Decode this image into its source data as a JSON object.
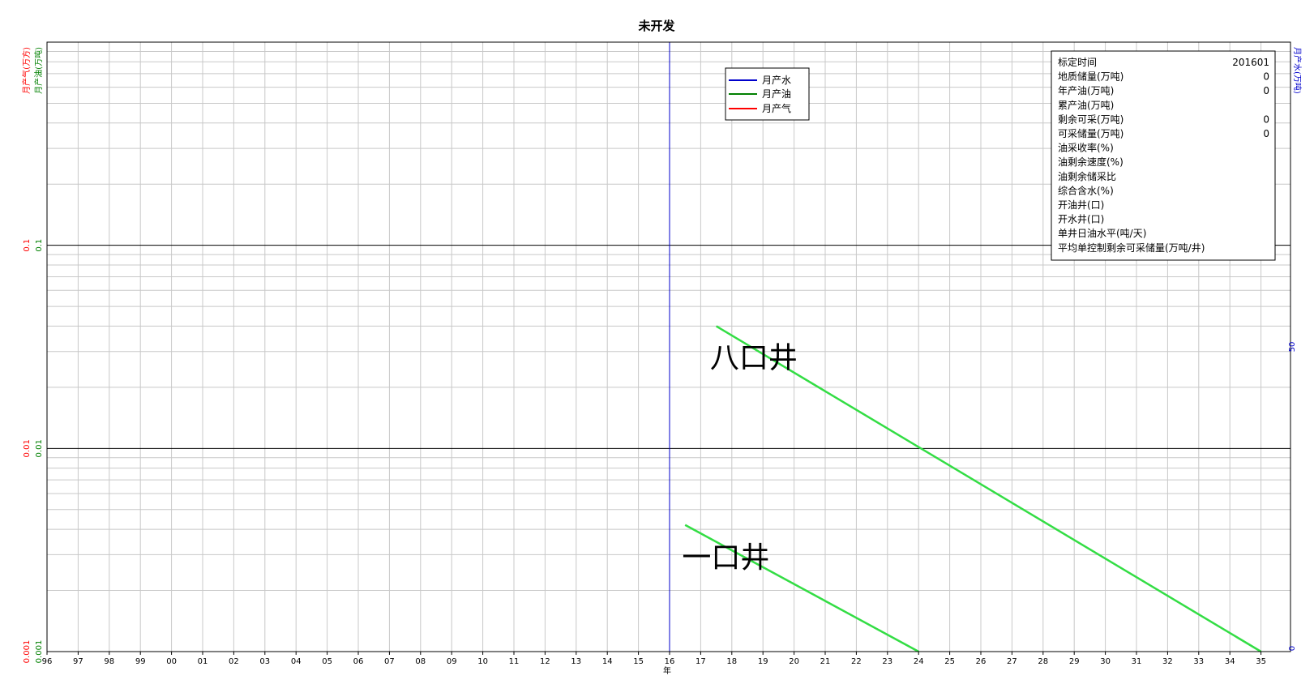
{
  "chart_data": {
    "type": "line",
    "title": "未开发",
    "xlabel": "年",
    "x_ticks": [
      "96",
      "97",
      "98",
      "99",
      "00",
      "01",
      "02",
      "03",
      "04",
      "05",
      "06",
      "07",
      "08",
      "09",
      "10",
      "11",
      "12",
      "13",
      "14",
      "15",
      "16",
      "17",
      "18",
      "19",
      "20",
      "21",
      "22",
      "23",
      "24",
      "25",
      "26",
      "27",
      "28",
      "29",
      "30",
      "31",
      "32",
      "33",
      "34",
      "35"
    ],
    "left_axes": [
      {
        "label": "月产气(万方)",
        "color": "#ff0000"
      },
      {
        "label": "月产油(万吨)",
        "color": "#008000"
      }
    ],
    "left_scale": "log",
    "y_ticks": [
      "0.001",
      "0.01",
      "0.1"
    ],
    "ylim": [
      0.001,
      1
    ],
    "right_axis": {
      "label": "月产水(万吨)",
      "color": "#0000cc",
      "ticks": [
        "0",
        "50"
      ]
    },
    "vline": {
      "x": 16,
      "color": "#0000cc"
    },
    "legend": {
      "placement": "top-center",
      "items": [
        {
          "name": "月产水",
          "color": "#0000cc"
        },
        {
          "name": "月产油",
          "color": "#008000"
        },
        {
          "name": "月产气",
          "color": "#ff0000"
        }
      ]
    },
    "series": [
      {
        "points": [
          [
            17.5,
            0.04
          ],
          [
            35,
            0.001
          ]
        ],
        "color": "#33dd44"
      },
      {
        "points": [
          [
            16.5,
            0.0042
          ],
          [
            24,
            0.001
          ]
        ],
        "color": "#33dd44"
      }
    ],
    "annotations": [
      {
        "text": "八口井",
        "x": 17.3,
        "y": 0.025
      },
      {
        "text": "一口井",
        "x": 16.4,
        "y": 0.0026
      }
    ]
  },
  "info_box": {
    "rows": [
      {
        "label": "标定时间",
        "value": "201601"
      },
      {
        "label": "地质储量(万吨)",
        "value": "0"
      },
      {
        "label": "年产油(万吨)",
        "value": "0"
      },
      {
        "label": "累产油(万吨)",
        "value": ""
      },
      {
        "label": "剩余可采(万吨)",
        "value": "0"
      },
      {
        "label": "可采储量(万吨)",
        "value": "0"
      },
      {
        "label": "油采收率(%)",
        "value": ""
      },
      {
        "label": "油剩余速度(%)",
        "value": ""
      },
      {
        "label": "油剩余储采比",
        "value": ""
      },
      {
        "label": "综合含水(%)",
        "value": ""
      },
      {
        "label": "开油井(口)",
        "value": ""
      },
      {
        "label": "开水井(口)",
        "value": ""
      },
      {
        "label": "单井日油水平(吨/天)",
        "value": ""
      },
      {
        "label": "平均单控制剩余可采储量(万吨/井)",
        "value": ""
      }
    ]
  }
}
